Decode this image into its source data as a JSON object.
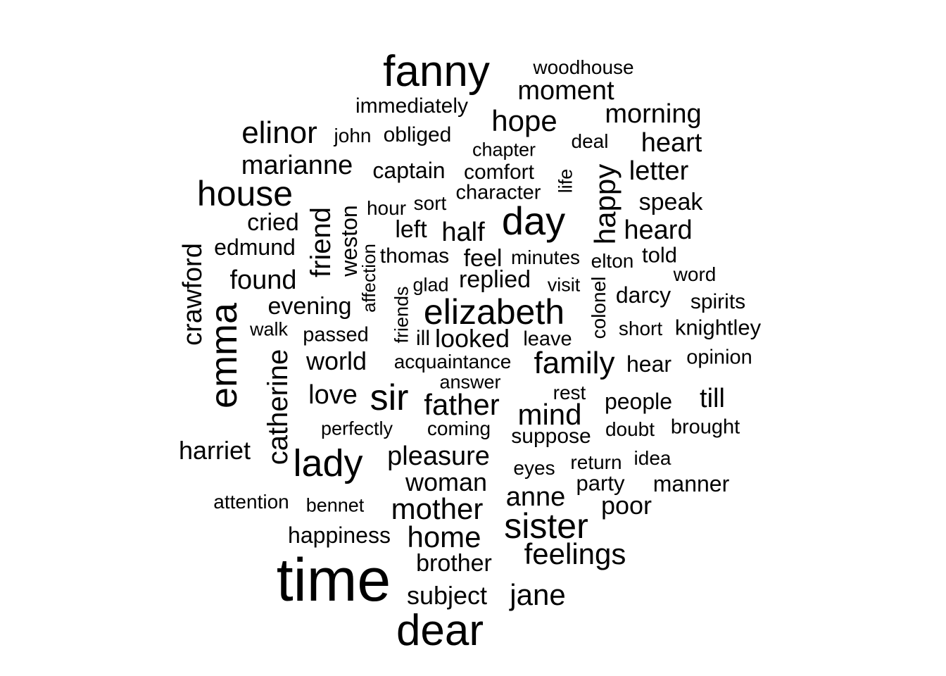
{
  "word_cloud": {
    "text_color": "#000000",
    "background_color": "#ffffff",
    "words": [
      {
        "text": "time",
        "orientation": "horizontal"
      },
      {
        "text": "dear",
        "orientation": "horizontal"
      },
      {
        "text": "fanny",
        "orientation": "horizontal"
      },
      {
        "text": "elizabeth",
        "orientation": "horizontal"
      },
      {
        "text": "emma",
        "orientation": "vertical"
      },
      {
        "text": "day",
        "orientation": "horizontal"
      },
      {
        "text": "sister",
        "orientation": "horizontal"
      },
      {
        "text": "house",
        "orientation": "horizontal"
      },
      {
        "text": "sir",
        "orientation": "horizontal"
      },
      {
        "text": "lady",
        "orientation": "horizontal"
      },
      {
        "text": "elinor",
        "orientation": "horizontal"
      },
      {
        "text": "family",
        "orientation": "horizontal"
      },
      {
        "text": "father",
        "orientation": "horizontal"
      },
      {
        "text": "mother",
        "orientation": "horizontal"
      },
      {
        "text": "home",
        "orientation": "horizontal"
      },
      {
        "text": "feelings",
        "orientation": "horizontal"
      },
      {
        "text": "mind",
        "orientation": "horizontal"
      },
      {
        "text": "hope",
        "orientation": "horizontal"
      },
      {
        "text": "happy",
        "orientation": "vertical"
      },
      {
        "text": "catherine",
        "orientation": "vertical"
      },
      {
        "text": "marianne",
        "orientation": "horizontal"
      },
      {
        "text": "pleasure",
        "orientation": "horizontal"
      },
      {
        "text": "moment",
        "orientation": "horizontal"
      },
      {
        "text": "morning",
        "orientation": "horizontal"
      },
      {
        "text": "friend",
        "orientation": "vertical"
      },
      {
        "text": "crawford",
        "orientation": "vertical"
      },
      {
        "text": "half",
        "orientation": "horizontal"
      },
      {
        "text": "jane",
        "orientation": "horizontal"
      },
      {
        "text": "found",
        "orientation": "horizontal"
      },
      {
        "text": "heard",
        "orientation": "horizontal"
      },
      {
        "text": "heart",
        "orientation": "horizontal"
      },
      {
        "text": "letter",
        "orientation": "horizontal"
      },
      {
        "text": "anne",
        "orientation": "horizontal"
      },
      {
        "text": "woman",
        "orientation": "horizontal"
      },
      {
        "text": "love",
        "orientation": "horizontal"
      },
      {
        "text": "brother",
        "orientation": "horizontal"
      },
      {
        "text": "world",
        "orientation": "horizontal"
      },
      {
        "text": "subject",
        "orientation": "horizontal"
      },
      {
        "text": "harriet",
        "orientation": "horizontal"
      },
      {
        "text": "poor",
        "orientation": "horizontal"
      },
      {
        "text": "till",
        "orientation": "horizontal"
      },
      {
        "text": "looked",
        "orientation": "horizontal"
      },
      {
        "text": "evening",
        "orientation": "horizontal"
      },
      {
        "text": "replied",
        "orientation": "horizontal"
      },
      {
        "text": "weston",
        "orientation": "vertical"
      },
      {
        "text": "cried",
        "orientation": "horizontal"
      },
      {
        "text": "edmund",
        "orientation": "horizontal"
      },
      {
        "text": "speak",
        "orientation": "horizontal"
      },
      {
        "text": "happiness",
        "orientation": "horizontal"
      },
      {
        "text": "manner",
        "orientation": "horizontal"
      },
      {
        "text": "feel",
        "orientation": "horizontal"
      },
      {
        "text": "left",
        "orientation": "horizontal"
      },
      {
        "text": "immediately",
        "orientation": "horizontal"
      },
      {
        "text": "captain",
        "orientation": "horizontal"
      },
      {
        "text": "darcy",
        "orientation": "horizontal"
      },
      {
        "text": "people",
        "orientation": "horizontal"
      },
      {
        "text": "hear",
        "orientation": "horizontal"
      },
      {
        "text": "knightley",
        "orientation": "horizontal"
      },
      {
        "text": "told",
        "orientation": "horizontal"
      },
      {
        "text": "suppose",
        "orientation": "horizontal"
      },
      {
        "text": "party",
        "orientation": "horizontal"
      },
      {
        "text": "comfort",
        "orientation": "horizontal"
      },
      {
        "text": "obliged",
        "orientation": "horizontal"
      },
      {
        "text": "spirits",
        "orientation": "horizontal"
      },
      {
        "text": "thomas",
        "orientation": "horizontal"
      },
      {
        "text": "acquaintance",
        "orientation": "horizontal"
      },
      {
        "text": "character",
        "orientation": "horizontal"
      },
      {
        "text": "colonel",
        "orientation": "vertical"
      },
      {
        "text": "attention",
        "orientation": "horizontal"
      },
      {
        "text": "brought",
        "orientation": "horizontal"
      },
      {
        "text": "passed",
        "orientation": "horizontal"
      },
      {
        "text": "opinion",
        "orientation": "horizontal"
      },
      {
        "text": "woodhouse",
        "orientation": "horizontal"
      },
      {
        "text": "coming",
        "orientation": "horizontal"
      },
      {
        "text": "perfectly",
        "orientation": "horizontal"
      },
      {
        "text": "leave",
        "orientation": "horizontal"
      },
      {
        "text": "answer",
        "orientation": "horizontal"
      },
      {
        "text": "bennet",
        "orientation": "horizontal"
      },
      {
        "text": "return",
        "orientation": "horizontal"
      },
      {
        "text": "elton",
        "orientation": "horizontal"
      },
      {
        "text": "chapter",
        "orientation": "horizontal"
      },
      {
        "text": "word",
        "orientation": "horizontal"
      },
      {
        "text": "minutes",
        "orientation": "horizontal"
      },
      {
        "text": "john",
        "orientation": "horizontal"
      },
      {
        "text": "doubt",
        "orientation": "horizontal"
      },
      {
        "text": "deal",
        "orientation": "horizontal"
      },
      {
        "text": "sort",
        "orientation": "horizontal"
      },
      {
        "text": "idea",
        "orientation": "horizontal"
      },
      {
        "text": "short",
        "orientation": "horizontal"
      },
      {
        "text": "visit",
        "orientation": "horizontal"
      },
      {
        "text": "eyes",
        "orientation": "horizontal"
      },
      {
        "text": "friends",
        "orientation": "vertical"
      },
      {
        "text": "hour",
        "orientation": "horizontal"
      },
      {
        "text": "rest",
        "orientation": "horizontal"
      },
      {
        "text": "walk",
        "orientation": "horizontal"
      },
      {
        "text": "affection",
        "orientation": "vertical"
      },
      {
        "text": "life",
        "orientation": "vertical"
      },
      {
        "text": "glad",
        "orientation": "horizontal"
      },
      {
        "text": "ill",
        "orientation": "horizontal"
      }
    ]
  }
}
